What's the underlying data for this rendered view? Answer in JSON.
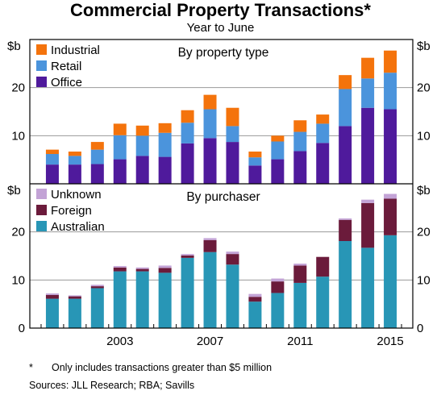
{
  "title": "Commercial Property Transactions*",
  "subtitle": "Year to June",
  "colors": {
    "industrial": "#f4730c",
    "retail": "#4b94dc",
    "office": "#4f1a9c",
    "unknown": "#c3a3d6",
    "foreign": "#6b1b3b",
    "australian": "#2896b6",
    "grid": "#9a9a9a"
  },
  "chart_data": [
    {
      "type": "bar",
      "stacked": true,
      "title": "By property type",
      "unit_label": "$b",
      "ylim": [
        0,
        30
      ],
      "yticks": [
        10,
        20
      ],
      "grid": true,
      "legend_position": "top-left",
      "series": [
        {
          "name": "Office",
          "key": "office",
          "values": [
            4.0,
            4.0,
            4.1,
            5.1,
            5.8,
            5.6,
            8.4,
            9.5,
            8.7,
            3.8,
            5.1,
            6.8,
            8.5,
            12.0,
            15.8,
            15.5
          ]
        },
        {
          "name": "Retail",
          "key": "retail",
          "values": [
            2.2,
            1.8,
            3.0,
            5.0,
            4.2,
            5.0,
            4.3,
            6.0,
            3.3,
            1.7,
            3.7,
            4.0,
            4.0,
            7.7,
            6.1,
            7.6
          ]
        },
        {
          "name": "Industrial",
          "key": "industrial",
          "values": [
            0.9,
            0.9,
            1.6,
            2.4,
            2.1,
            2.0,
            2.6,
            3.0,
            3.8,
            1.2,
            1.2,
            2.4,
            1.9,
            2.9,
            4.3,
            4.6
          ]
        }
      ],
      "legend_order": [
        "Industrial",
        "Retail",
        "Office"
      ]
    },
    {
      "type": "bar",
      "stacked": true,
      "title": "By purchaser",
      "unit_label": "$b",
      "ylim": [
        0,
        30
      ],
      "yticks": [
        0,
        10,
        20
      ],
      "grid": true,
      "legend_position": "top-left",
      "series": [
        {
          "name": "Australian",
          "key": "australian",
          "values": [
            6.1,
            6.1,
            8.3,
            11.8,
            11.8,
            11.5,
            14.6,
            15.8,
            13.2,
            5.5,
            7.3,
            9.4,
            10.7,
            18.1,
            16.7,
            19.3
          ]
        },
        {
          "name": "Foreign",
          "key": "foreign",
          "values": [
            0.8,
            0.5,
            0.4,
            0.8,
            0.5,
            1.0,
            0.5,
            2.5,
            2.2,
            1.0,
            2.4,
            3.6,
            4.1,
            4.4,
            9.3,
            7.6
          ]
        },
        {
          "name": "Unknown",
          "key": "unknown",
          "values": [
            0.3,
            0.2,
            0.3,
            0.3,
            0.3,
            0.5,
            0.3,
            0.4,
            0.5,
            0.6,
            0.6,
            0.4,
            0.0,
            0.3,
            0.7,
            1.0
          ]
        }
      ],
      "legend_order": [
        "Unknown",
        "Foreign",
        "Australian"
      ]
    }
  ],
  "x_years": [
    2000,
    2001,
    2002,
    2003,
    2004,
    2005,
    2006,
    2007,
    2008,
    2009,
    2010,
    2011,
    2012,
    2013,
    2014,
    2015
  ],
  "x_tick_labels": [
    "2003",
    "2007",
    "2011",
    "2015"
  ],
  "x_tick_years": [
    2003,
    2007,
    2011,
    2015
  ],
  "footnote": {
    "marker": "*",
    "text": "Only includes transactions greater than $5 million"
  },
  "sources": "Sources:   JLL Research; RBA; Savills"
}
